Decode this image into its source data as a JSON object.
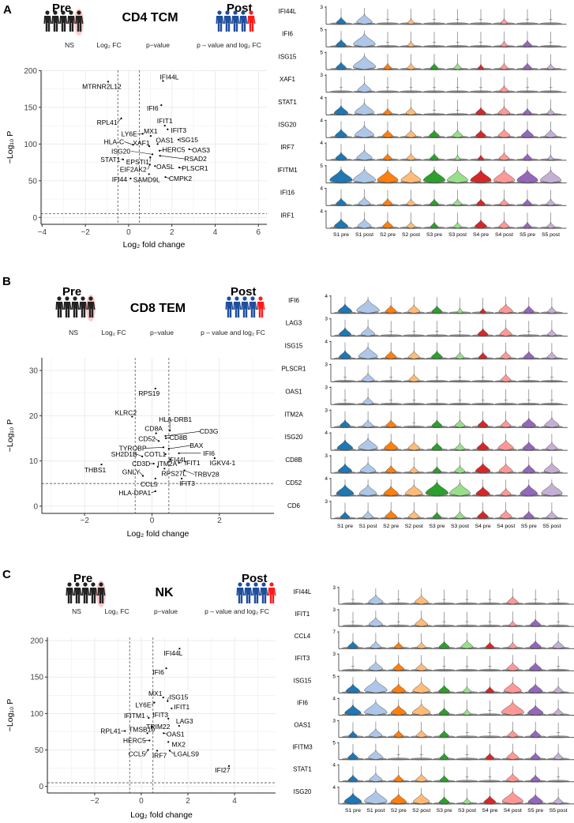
{
  "colors": {
    "samples": [
      "#1f77b4",
      "#aec7e8",
      "#ff7f0e",
      "#ffbb78",
      "#2ca02c",
      "#98df8a",
      "#d62728",
      "#ff9896",
      "#9467bd",
      "#c5b0d5"
    ],
    "pre_people": "#222222",
    "post_people": "#1f4e9c",
    "highlight_person": "#ff1a1a"
  },
  "panels": [
    {
      "letter": "A",
      "title": "CD4 TCM",
      "pre_label": "Pre",
      "post_label": "Post",
      "legend": [
        "NS",
        "Log₂ FC",
        "p−value",
        "p – value and log₂ FC"
      ]
    },
    {
      "letter": "B",
      "title": "CD8 TEM",
      "pre_label": "Pre",
      "post_label": "Post",
      "legend": [
        "NS",
        "Log₂ FC",
        "p−value",
        "p – value and log₂ FC"
      ]
    },
    {
      "letter": "C",
      "title": "NK",
      "pre_label": "Pre",
      "post_label": "Post",
      "legend": [
        "NS",
        "Log₂ FC",
        "p−value",
        "p – value and log₂ FC"
      ]
    }
  ],
  "chart_data": [
    {
      "type": "scatter",
      "panel": "A",
      "title": "CD4 TCM volcano",
      "xlabel": "Log₂ fold change",
      "ylabel": "−Log₁₀ P",
      "xlim": [
        -4.05,
        6.39
      ],
      "ylim": [
        -9.4,
        200.5
      ],
      "xticks": [
        -4,
        -2,
        0,
        2,
        4,
        6
      ],
      "yticks": [
        0,
        50,
        100,
        150,
        200
      ],
      "fc_cutoff": 0.5,
      "p_cutoff": 5,
      "grid": true,
      "points": [
        {
          "gene": "IFI44L",
          "x": 1.59,
          "y": 186
        },
        {
          "gene": "MTRNR2L12",
          "x": -0.95,
          "y": 185
        },
        {
          "gene": "IFI6",
          "x": 1.51,
          "y": 153
        },
        {
          "gene": "RPL41",
          "x": -0.34,
          "y": 135
        },
        {
          "gene": "IFIT1",
          "x": 1.67,
          "y": 125
        },
        {
          "gene": "IFIT3",
          "x": 1.8,
          "y": 120
        },
        {
          "gene": "MX1",
          "x": 1.02,
          "y": 111
        },
        {
          "gene": "LY6E",
          "x": 0.65,
          "y": 114
        },
        {
          "gene": "ISG15",
          "x": 2.3,
          "y": 106
        },
        {
          "gene": "OAS1",
          "x": 1.34,
          "y": 100
        },
        {
          "gene": "XAF1",
          "x": 0.95,
          "y": 97
        },
        {
          "gene": "HLA-C",
          "x": 0.2,
          "y": 99
        },
        {
          "gene": "HERC5",
          "x": 1.43,
          "y": 91
        },
        {
          "gene": "OAS3",
          "x": 2.8,
          "y": 93
        },
        {
          "gene": "ISG20",
          "x": 1.1,
          "y": 86
        },
        {
          "gene": "RSAD2",
          "x": 1.45,
          "y": 84
        },
        {
          "gene": "STAT1",
          "x": -0.26,
          "y": 79
        },
        {
          "gene": "EPSTI1",
          "x": 1.0,
          "y": 82
        },
        {
          "gene": "EIF2AK2",
          "x": 0.98,
          "y": 72
        },
        {
          "gene": "OASL",
          "x": 1.22,
          "y": 70
        },
        {
          "gene": "PLSCR1",
          "x": 2.34,
          "y": 68
        },
        {
          "gene": "IFI44",
          "x": 0.09,
          "y": 53
        },
        {
          "gene": "SAMD9L",
          "x": 0.94,
          "y": 59
        },
        {
          "gene": "CMPK2",
          "x": 1.7,
          "y": 55
        }
      ]
    },
    {
      "type": "scatter",
      "panel": "B",
      "title": "CD8 TEM volcano",
      "xlabel": "Log₂ fold change",
      "ylabel": "−Log₁₀ P",
      "xlim": [
        -3.27,
        3.62
      ],
      "ylim": [
        -1.6,
        32.8
      ],
      "xticks": [
        -2,
        0,
        2
      ],
      "yticks": [
        0,
        10,
        20,
        30
      ],
      "fc_cutoff": 0.5,
      "p_cutoff": 5,
      "grid": true,
      "points": [
        {
          "gene": "RPS19",
          "x": 0.1,
          "y": 26
        },
        {
          "gene": "KLRC2",
          "x": -0.59,
          "y": 19.8
        },
        {
          "gene": "HLA-DRB1",
          "x": 0.53,
          "y": 16.7
        },
        {
          "gene": "CD3G",
          "x": 0.4,
          "y": 15.5
        },
        {
          "gene": "CD8A",
          "x": 0.12,
          "y": 16.1
        },
        {
          "gene": "CD52",
          "x": 0.2,
          "y": 14.4
        },
        {
          "gene": "CD8B",
          "x": 0.41,
          "y": 15
        },
        {
          "gene": "BAX",
          "x": 0.5,
          "y": 12.7
        },
        {
          "gene": "TYROBP",
          "x": 0.34,
          "y": 13
        },
        {
          "gene": "SH2D1B",
          "x": -0.29,
          "y": 11
        },
        {
          "gene": "COTL1",
          "x": 0.4,
          "y": 11.5
        },
        {
          "gene": "IFI6",
          "x": 0.8,
          "y": 11.7
        },
        {
          "gene": "IGKV4-1",
          "x": 1.86,
          "y": 10.6
        },
        {
          "gene": "IFI44L",
          "x": 0.55,
          "y": 10.3
        },
        {
          "gene": "CD3D",
          "x": 0.05,
          "y": 9.4
        },
        {
          "gene": "ITM2A",
          "x": 0.17,
          "y": 8.7
        },
        {
          "gene": "IFIT1",
          "x": 0.8,
          "y": 9.6
        },
        {
          "gene": "RPS27L",
          "x": 0.37,
          "y": 8.3
        },
        {
          "gene": "TRBV28",
          "x": 0.96,
          "y": 7.9
        },
        {
          "gene": "THBS1",
          "x": -1.5,
          "y": 9.2
        },
        {
          "gene": "GNLY",
          "x": -0.27,
          "y": 6.7
        },
        {
          "gene": "IFIT3",
          "x": 0.88,
          "y": 6.1
        },
        {
          "gene": "CCL5",
          "x": 0.1,
          "y": 6.1
        },
        {
          "gene": "HLA-DPA1",
          "x": 0.1,
          "y": 3.3
        }
      ]
    },
    {
      "type": "scatter",
      "panel": "C",
      "title": "NK volcano",
      "xlabel": "Log₂ fold change",
      "ylabel": "−Log₁₀ P",
      "xlim": [
        -4.03,
        5.76
      ],
      "ylim": [
        -9,
        204.4
      ],
      "xticks": [
        -2,
        0,
        2,
        4
      ],
      "yticks": [
        0,
        50,
        100,
        150,
        200
      ],
      "fc_cutoff": 0.5,
      "p_cutoff": 5,
      "grid": true,
      "points": [
        {
          "gene": "IFI44L",
          "x": 1.64,
          "y": 189
        },
        {
          "gene": "IFI6",
          "x": 1.07,
          "y": 162
        },
        {
          "gene": "MX1",
          "x": 0.94,
          "y": 122
        },
        {
          "gene": "ISG15",
          "x": 1.13,
          "y": 117
        },
        {
          "gene": "LY6E",
          "x": 0.56,
          "y": 115
        },
        {
          "gene": "IFIT1",
          "x": 1.3,
          "y": 107
        },
        {
          "gene": "IFITM1",
          "x": 0.32,
          "y": 94
        },
        {
          "gene": "IFIT3",
          "x": 1.16,
          "y": 93
        },
        {
          "gene": "LAG3",
          "x": 1.62,
          "y": 83
        },
        {
          "gene": "TRIM22",
          "x": 0.45,
          "y": 82
        },
        {
          "gene": "RPL41",
          "x": -0.7,
          "y": 76
        },
        {
          "gene": "TMSB10",
          "x": 0.26,
          "y": 73
        },
        {
          "gene": "OAS1",
          "x": 0.96,
          "y": 73
        },
        {
          "gene": "HERC5",
          "x": 0.35,
          "y": 63
        },
        {
          "gene": "MX2",
          "x": 1.16,
          "y": 61
        },
        {
          "gene": "CCL5",
          "x": 0.29,
          "y": 50
        },
        {
          "gene": "IRF7",
          "x": 0.68,
          "y": 49
        },
        {
          "gene": "LGALS9",
          "x": 1.22,
          "y": 49
        },
        {
          "gene": "IFI27",
          "x": 3.76,
          "y": 28
        }
      ]
    },
    {
      "type": "violin",
      "panel": "A",
      "samples": [
        "S1 pre",
        "S1 post",
        "S2 pre",
        "S2 post",
        "S3 pre",
        "S3 post",
        "S4 pre",
        "S4 post",
        "S5 pre",
        "S5 post"
      ],
      "genes": [
        {
          "gene": "IFI44L",
          "ymax": 3,
          "density": [
            0.25,
            0.6,
            0,
            0.1,
            0,
            0,
            0,
            0.1,
            0,
            0
          ]
        },
        {
          "gene": "IFI6",
          "ymax": 5,
          "density": [
            0.3,
            0.95,
            0,
            0.1,
            0,
            0,
            0,
            0.1,
            0.2,
            0
          ]
        },
        {
          "gene": "ISG15",
          "ymax": 5,
          "density": [
            0.3,
            1,
            0.15,
            0.15,
            0.15,
            0.15,
            0.05,
            0.15,
            0.2,
            0.1
          ]
        },
        {
          "gene": "XAF1",
          "ymax": 3,
          "density": [
            0,
            0.5,
            0,
            0,
            0,
            0,
            0,
            0.2,
            0,
            0
          ]
        },
        {
          "gene": "STAT1",
          "ymax": 4,
          "density": [
            0.5,
            0.8,
            0.2,
            0.3,
            0,
            0,
            0.3,
            0.4,
            0.2,
            0.15
          ]
        },
        {
          "gene": "ISG20",
          "ymax": 4,
          "density": [
            0.4,
            0.8,
            0.3,
            0.3,
            0.3,
            0.3,
            0.3,
            0.4,
            0.4,
            0.35
          ]
        },
        {
          "gene": "IRF7",
          "ymax": 4,
          "density": [
            0.35,
            0.6,
            0.2,
            0.2,
            0.2,
            0.05,
            0.05,
            0.3,
            0.2,
            0.05
          ]
        },
        {
          "gene": "IFITM1",
          "ymax": 5,
          "density": [
            1,
            1,
            0.9,
            0.85,
            0.95,
            0.9,
            0.9,
            0.9,
            0.9,
            0.9
          ]
        },
        {
          "gene": "IFI16",
          "ymax": 4,
          "density": [
            0.3,
            0.4,
            0.25,
            0.2,
            0.2,
            0.2,
            0.2,
            0.2,
            0.2,
            0.2
          ]
        },
        {
          "gene": "IRF1",
          "ymax": 4,
          "density": [
            0.5,
            0.5,
            0.3,
            0.2,
            0.15,
            0.15,
            0.4,
            0.3,
            0.15,
            0.15
          ]
        }
      ]
    },
    {
      "type": "violin",
      "panel": "B",
      "samples": [
        "S1 pre",
        "S1 post",
        "S2 pre",
        "S2 post",
        "S3 pre",
        "S3 post",
        "S4 pre",
        "S4 post",
        "S5 pre",
        "S5 post"
      ],
      "genes": [
        {
          "gene": "IFI6",
          "ymax": 4,
          "density": [
            0.5,
            1,
            0.35,
            0.4,
            0.3,
            0.05,
            0.05,
            0.5,
            0.3,
            0.2
          ]
        },
        {
          "gene": "LAG3",
          "ymax": 3,
          "density": [
            0.4,
            0.5,
            0,
            0,
            0,
            0,
            0.3,
            0.4,
            0,
            0.2
          ]
        },
        {
          "gene": "ISG15",
          "ymax": 4,
          "density": [
            0.4,
            0.8,
            0.35,
            0.35,
            0.35,
            0.2,
            0.2,
            0.3,
            0.3,
            0.25
          ]
        },
        {
          "gene": "PLSCR1",
          "ymax": 3,
          "density": [
            0,
            0.4,
            0,
            0.3,
            0,
            0,
            0,
            0.3,
            0,
            0
          ]
        },
        {
          "gene": "OAS1",
          "ymax": 3,
          "density": [
            0,
            0.3,
            0,
            0,
            0,
            0,
            0,
            0,
            0,
            0
          ]
        },
        {
          "gene": "ITM2A",
          "ymax": 3,
          "density": [
            0.3,
            0.3,
            0.3,
            0,
            0.3,
            0.3,
            0.3,
            0.3,
            0.5,
            0.55
          ]
        },
        {
          "gene": "ISG20",
          "ymax": 4,
          "density": [
            0.6,
            0.8,
            0.5,
            0.4,
            0.3,
            0.25,
            0.4,
            0.6,
            0.4,
            0.35
          ]
        },
        {
          "gene": "CD8B",
          "ymax": 3,
          "density": [
            0.5,
            0.6,
            0.3,
            0.2,
            0.2,
            0.3,
            0.55,
            0.5,
            0.4,
            0.6
          ]
        },
        {
          "gene": "CD52",
          "ymax": 4,
          "density": [
            0.7,
            0.7,
            0.55,
            0.7,
            1,
            0.9,
            0.5,
            0.3,
            0.7,
            0.9
          ]
        },
        {
          "gene": "CD6",
          "ymax": 3,
          "density": [
            0.25,
            0.3,
            0.4,
            0.35,
            0.2,
            0.25,
            0.35,
            0.4,
            0.3,
            0.3
          ]
        }
      ]
    },
    {
      "type": "violin",
      "panel": "C",
      "samples": [
        "S1 pre",
        "S1 post",
        "S2 pre",
        "S2 post",
        "S3 pre",
        "S3 post",
        "S4 pre",
        "S4 post",
        "S5 pre",
        "S5 post"
      ],
      "genes": [
        {
          "gene": "IFI44L",
          "ymax": 3,
          "density": [
            0,
            0.55,
            0,
            0.5,
            0,
            0,
            0,
            0.35,
            0,
            0
          ]
        },
        {
          "gene": "IFIT1",
          "ymax": 3,
          "density": [
            0,
            0.5,
            0,
            0.45,
            0,
            0,
            0,
            0.1,
            0.3,
            0
          ]
        },
        {
          "gene": "CCL4",
          "ymax": 7,
          "density": [
            0.3,
            0.3,
            0.2,
            0.2,
            0.3,
            0.4,
            0.2,
            0.2,
            0.35,
            0.35
          ]
        },
        {
          "gene": "IFIT3",
          "ymax": 3,
          "density": [
            0,
            0.5,
            0.35,
            0.35,
            0,
            0,
            0,
            0.4,
            0.4,
            0
          ]
        },
        {
          "gene": "ISG15",
          "ymax": 5,
          "density": [
            0.5,
            1,
            0.5,
            0.7,
            0.35,
            0.2,
            0.2,
            0.7,
            0.5,
            0.25
          ]
        },
        {
          "gene": "IFI6",
          "ymax": 4,
          "density": [
            0.65,
            1,
            0.6,
            0.75,
            0.3,
            0.15,
            0,
            1,
            0.6,
            0.25
          ]
        },
        {
          "gene": "OAS1",
          "ymax": 3,
          "density": [
            0.2,
            0.45,
            0.25,
            0.3,
            0.25,
            0,
            0,
            0.3,
            0.3,
            0
          ]
        },
        {
          "gene": "IFITM3",
          "ymax": 5,
          "density": [
            0.3,
            0.55,
            0,
            0,
            0.2,
            0,
            0.2,
            0.4,
            0.25,
            0.25
          ]
        },
        {
          "gene": "STAT1",
          "ymax": 4,
          "density": [
            0.25,
            0.45,
            0.25,
            0.35,
            0.2,
            0,
            0,
            0.4,
            0.25,
            0
          ]
        },
        {
          "gene": "ISG20",
          "ymax": 4,
          "density": [
            0.7,
            1,
            0.6,
            0.65,
            0.3,
            0.15,
            0.4,
            0.9,
            0.55,
            0.25
          ]
        }
      ]
    }
  ]
}
